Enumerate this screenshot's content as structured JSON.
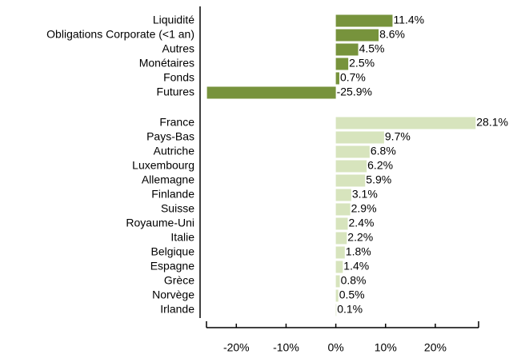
{
  "chart_data": {
    "type": "bar",
    "orientation": "horizontal",
    "groups": [
      {
        "color": "#77933c",
        "categories": [
          "Liquidité",
          "Obligations Corporate (<1 an)",
          "Autres",
          "Monétaires",
          "Fonds",
          "Futures"
        ],
        "values": [
          11.4,
          8.6,
          4.5,
          2.5,
          0.7,
          -25.9
        ],
        "value_labels": [
          "11.4%",
          "8.6%",
          "4.5%",
          "2.5%",
          "0.7%",
          "-25.9%"
        ]
      },
      {
        "color": "#d7e4bd",
        "categories": [
          "France",
          "Pays-Bas",
          "Autriche",
          "Luxembourg",
          "Allemagne",
          "Finlande",
          "Suisse",
          "Royaume-Uni",
          "Italie",
          "Belgique",
          "Espagne",
          "Grèce",
          "Norvège",
          "Irlande"
        ],
        "values": [
          28.1,
          9.7,
          6.8,
          6.2,
          5.9,
          3.1,
          2.9,
          2.4,
          2.2,
          1.8,
          1.4,
          0.8,
          0.5,
          0.1
        ],
        "value_labels": [
          "28.1%",
          "9.7%",
          "6.8%",
          "6.2%",
          "5.9%",
          "3.1%",
          "2.9%",
          "2.4%",
          "2.2%",
          "1.8%",
          "1.4%",
          "0.8%",
          "0.5%",
          "0.1%"
        ]
      }
    ],
    "xlim": [
      -26,
      28.7
    ],
    "xticks": [
      {
        "value": -20,
        "label": "-20%"
      },
      {
        "value": -10,
        "label": "-10%"
      },
      {
        "value": 0,
        "label": "0%"
      },
      {
        "value": 10,
        "label": "10%"
      },
      {
        "value": 20,
        "label": "20%"
      }
    ]
  }
}
